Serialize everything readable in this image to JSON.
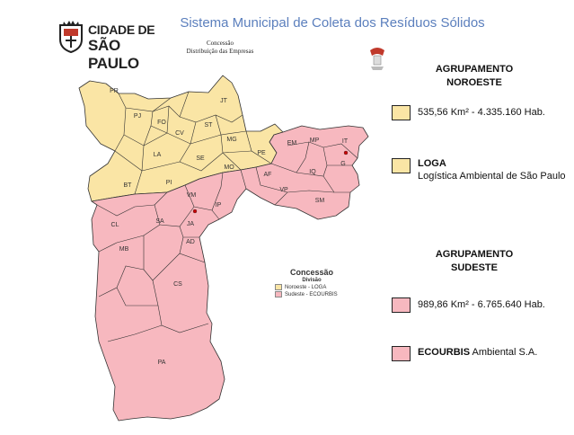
{
  "header": {
    "title": "Sistema Municipal de Coleta dos Resíduos Sólidos",
    "subtitle_line1": "Concessão",
    "subtitle_line2": "Distribuição das Empresas",
    "logo_line1": "CIDADE DE",
    "logo_line2": "SÃO PAULO"
  },
  "map": {
    "regions_noroeste": [
      "PR",
      "JT",
      "PJ",
      "FO",
      "ST",
      "CV",
      "MG",
      "LA",
      "SE",
      "PE",
      "MO",
      "BT",
      "PI"
    ],
    "regions_sudeste": [
      "EM",
      "MP",
      "IT",
      "G",
      "AF",
      "IQ",
      "VP",
      "SM",
      "VM",
      "IP",
      "CL",
      "SA",
      "JA",
      "AD",
      "MB",
      "CS",
      "PA"
    ],
    "legend": {
      "title": "Concessão",
      "subtitle": "Divisão",
      "items": [
        "Noroeste - LOGA",
        "Sudeste - ECOURBIS"
      ]
    }
  },
  "colors": {
    "noroeste": "#fae5a5",
    "sudeste": "#f7b8bf",
    "title": "#5b7fbd",
    "border": "#333333",
    "marker": "#cc0000"
  },
  "groups": {
    "noroeste": {
      "title_line1": "AGRUPAMENTO",
      "title_line2": "NOROESTE",
      "area_pop": "535,56 Km² - 4.335.160 Hab.",
      "company_name": "LOGA",
      "company_full": "Logística Ambiental de São Paulo"
    },
    "sudeste": {
      "title_line1": "AGRUPAMENTO",
      "title_line2": "SUDESTE",
      "area_pop": "989,86 Km² - 6.765.640 Hab.",
      "company_name": "ECOURBIS",
      "company_suffix": " Ambiental S.A."
    }
  }
}
